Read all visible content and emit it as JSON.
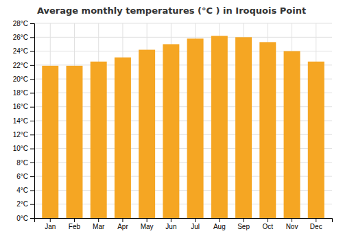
{
  "chart_data": {
    "type": "bar",
    "title": "Average monthly temperatures (°C ) in Iroquois Point",
    "categories": [
      "Jan",
      "Feb",
      "Mar",
      "Apr",
      "May",
      "Jun",
      "Jul",
      "Aug",
      "Sep",
      "Oct",
      "Nov",
      "Dec"
    ],
    "values": [
      21.9,
      21.9,
      22.5,
      23.1,
      24.2,
      25.0,
      25.8,
      26.2,
      26.0,
      25.3,
      24.0,
      22.5
    ],
    "color": "#F5A623",
    "ylim": [
      0,
      28
    ],
    "yticks": [
      {
        "value": 0,
        "label": "0°C"
      },
      {
        "value": 2,
        "label": "2°C"
      },
      {
        "value": 4,
        "label": "4°C"
      },
      {
        "value": 6,
        "label": "6°C"
      },
      {
        "value": 8,
        "label": "8°C"
      },
      {
        "value": 10,
        "label": "10°C"
      },
      {
        "value": 12,
        "label": "12°C"
      },
      {
        "value": 14,
        "label": "14°C"
      },
      {
        "value": 16,
        "label": "16°C"
      },
      {
        "value": 18,
        "label": "18°C"
      },
      {
        "value": 20,
        "label": "20°C"
      },
      {
        "value": 22,
        "label": "22°C"
      },
      {
        "value": 24,
        "label": "24°C"
      },
      {
        "value": 26,
        "label": "26°C"
      },
      {
        "value": 28,
        "label": "28°C"
      }
    ],
    "grid": true
  }
}
